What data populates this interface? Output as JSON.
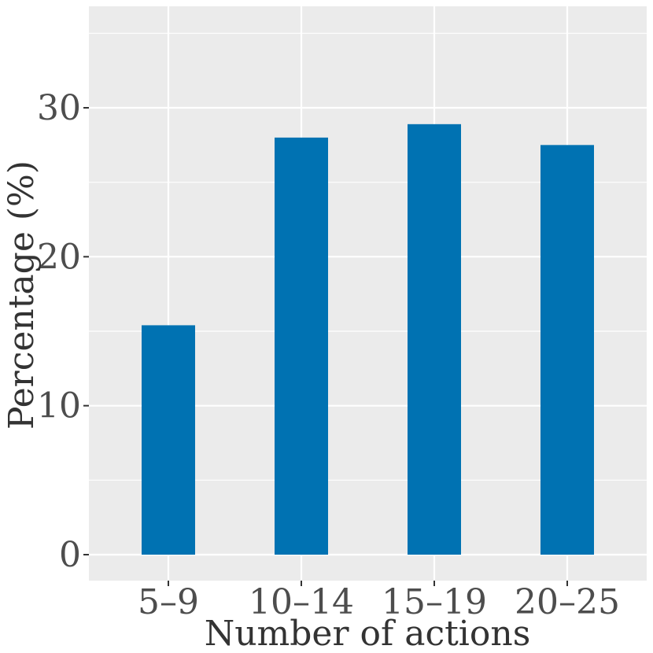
{
  "chart_data": {
    "type": "bar",
    "title": "",
    "xlabel": "Number of actions",
    "ylabel": "Percentage (%)",
    "categories": [
      "5–9",
      "10–14",
      "15–19",
      "20–25"
    ],
    "values": [
      15.4,
      28.0,
      28.9,
      27.5
    ],
    "ylim": [
      -1.7,
      36.8
    ],
    "yticks": [
      0,
      10,
      20,
      30
    ],
    "ytick_labels": [
      "0",
      "10",
      "20",
      "30"
    ],
    "grid": true,
    "bar_color": "#0072B2",
    "panel_background": "#EBEBEB",
    "grid_color": "#FFFFFF"
  }
}
